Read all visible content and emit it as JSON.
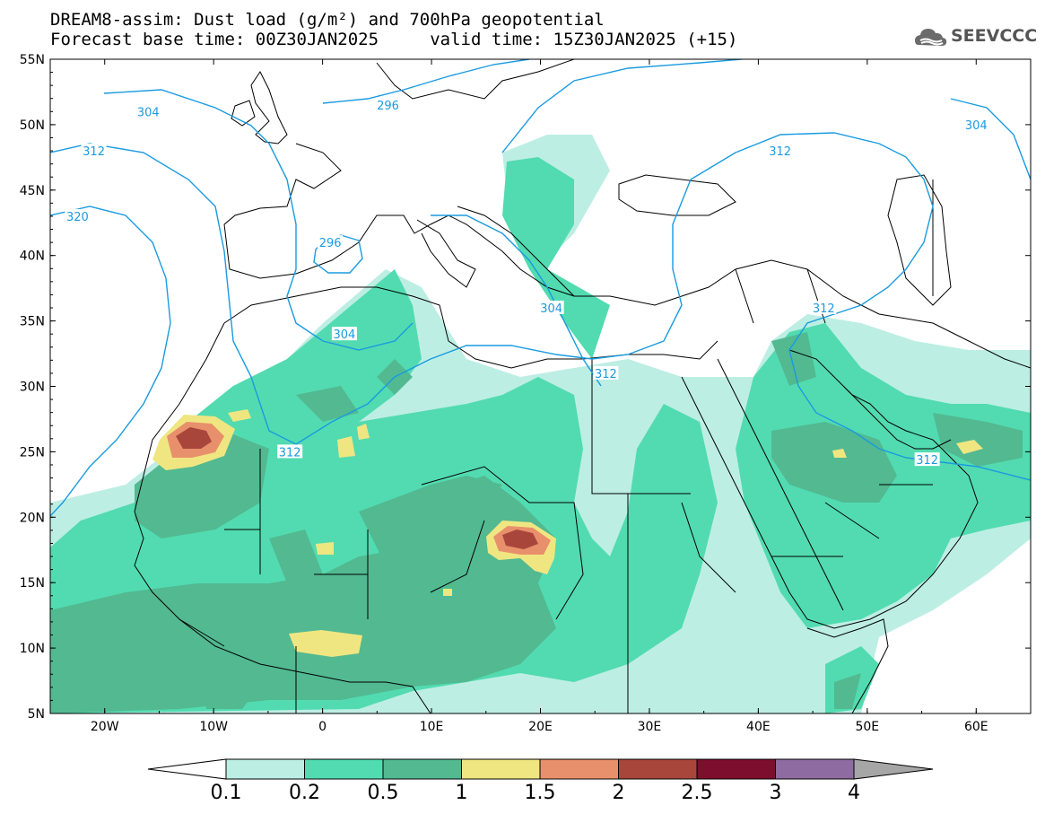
{
  "title": {
    "line1": "DREAM8-assim: Dust load (g/m²) and 700hPa geopotential",
    "line2": "Forecast base time: 00Z30JAN2025     valid time: 15Z30JAN2025 (+15)"
  },
  "logo": {
    "text": "SEEVCCC",
    "icon": "cloud-icon"
  },
  "map": {
    "lon_range": [
      -25,
      65
    ],
    "lat_range": [
      5,
      55
    ],
    "lat_ticks": [
      "55N",
      "50N",
      "45N",
      "40N",
      "35N",
      "30N",
      "25N",
      "20N",
      "15N",
      "10N",
      "5N"
    ],
    "lon_ticks": [
      "20W",
      "10W",
      "0",
      "10E",
      "20E",
      "30E",
      "40E",
      "50E",
      "60E"
    ],
    "contour_color": "#1a9be0",
    "coast_color": "#000000"
  },
  "contours": [
    {
      "label": "304",
      "lon": -16,
      "lat": 51
    },
    {
      "label": "296",
      "lon": 6,
      "lat": 51.5
    },
    {
      "label": "312",
      "lon": -21,
      "lat": 48
    },
    {
      "label": "320",
      "lon": -22.5,
      "lat": 43
    },
    {
      "label": "296",
      "lon": 0.7,
      "lat": 41
    },
    {
      "label": "304",
      "lon": 2,
      "lat": 34
    },
    {
      "label": "304",
      "lon": 21,
      "lat": 36
    },
    {
      "label": "312",
      "lon": -3,
      "lat": 25
    },
    {
      "label": "312",
      "lon": 26,
      "lat": 31
    },
    {
      "label": "312",
      "lon": 42,
      "lat": 48
    },
    {
      "label": "304",
      "lon": 60,
      "lat": 50
    },
    {
      "label": "312",
      "lon": 46,
      "lat": 36
    },
    {
      "label": "312",
      "lon": 55.5,
      "lat": 24.4
    }
  ],
  "legend": {
    "labels": [
      "0.1",
      "0.2",
      "0.5",
      "1",
      "1.5",
      "2",
      "2.5",
      "3",
      "4"
    ],
    "colors": [
      "#ffffff",
      "#bdeee4",
      "#52dbb0",
      "#52b991",
      "#f0e681",
      "#e8906b",
      "#a9463c",
      "#7d0e2d",
      "#8e6ba0",
      "#a6a6a6"
    ]
  },
  "chart_data": {
    "type": "heatmap",
    "variable": "Dust load (g/m²)",
    "levels": [
      0.1,
      0.2,
      0.5,
      1,
      1.5,
      2,
      2.5,
      3,
      4
    ],
    "hotspots": [
      {
        "lon": -12,
        "lat": 25.5,
        "max_level": 2.5
      },
      {
        "lon": 17.5,
        "lat": 18,
        "max_level": 2.5
      },
      {
        "lon": 0,
        "lat": 10.5,
        "max_level": 1.5
      },
      {
        "lon": 59,
        "lat": 25.5,
        "max_level": 1.5
      }
    ],
    "contour_variable": "700hPa geopotential",
    "contour_levels": [
      296,
      304,
      312,
      320
    ]
  }
}
